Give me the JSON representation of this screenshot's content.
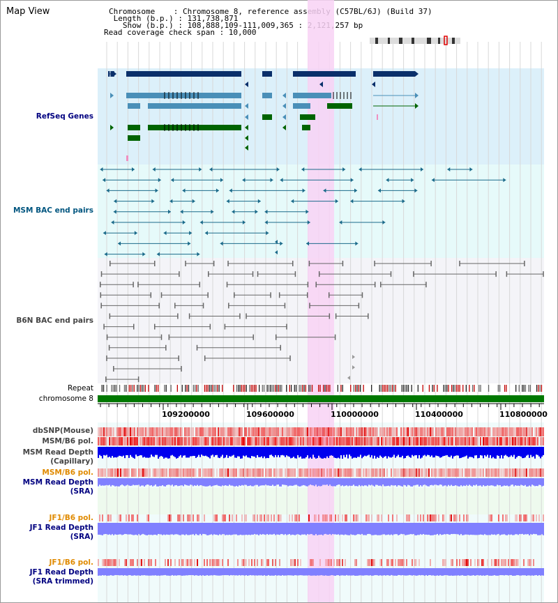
{
  "map_title": "Map View",
  "header": {
    "chromosome_line": "Chromosome    : Chromosome 8, reference assembly (C57BL/6J) (Build 37)",
    "length_line": " Length (b.p.) : 131,738,871",
    "show_line": "   Show (b.p.) : 108,888,109-111,009,365 : 2,121,257 bp",
    "coverage_line": "Read coverage check span : 10,000"
  },
  "tracks": {
    "refseq": "RefSeq Genes",
    "msm_bac": "MSM BAC end pairs",
    "b6n_bac": "B6N BAC end pairs",
    "repeat": "Repeat",
    "chromosome": "chromosome 8",
    "dbsnp": "dbSNP(Mouse)",
    "msm_b6_pol_1": "MSM/B6 pol.",
    "msm_depth_cap_1": "MSM Read Depth",
    "msm_depth_cap_2": "(Capillary)",
    "msm_b6_pol_2": "MSM/B6 pol.",
    "msm_depth_sra_1": "MSM Read Depth",
    "msm_depth_sra_2": "(SRA)",
    "jf1_b6_pol_1": "JF1/B6 pol.",
    "jf1_depth_sra_1": "JF1 Read Depth",
    "jf1_depth_sra_2": "(SRA)",
    "jf1_b6_pol_2": "JF1/B6 pol.",
    "jf1_depth_trim_1": "JF1 Read Depth",
    "jf1_depth_trim_2": "(SRA trimmed)"
  },
  "axis": {
    "ticks": [
      "109200000",
      "109600000",
      "110000000",
      "110400000",
      "110800000"
    ]
  },
  "colors": {
    "refseq_bg": "#dcf0fa",
    "msm_bg": "#e6fafa",
    "b6n_bg": "#f4f4f8",
    "highlight": "#f8d2f4",
    "gene_navy": "#0a2f6a",
    "gene_blue": "#4a8fb8",
    "gene_green": "#006400",
    "msm_line": "#1a6a8a",
    "b6n_line": "#666666",
    "chromosome_bar": "#007800",
    "depth_blue": "#0000ee",
    "depth_light": "#8080ff"
  }
}
